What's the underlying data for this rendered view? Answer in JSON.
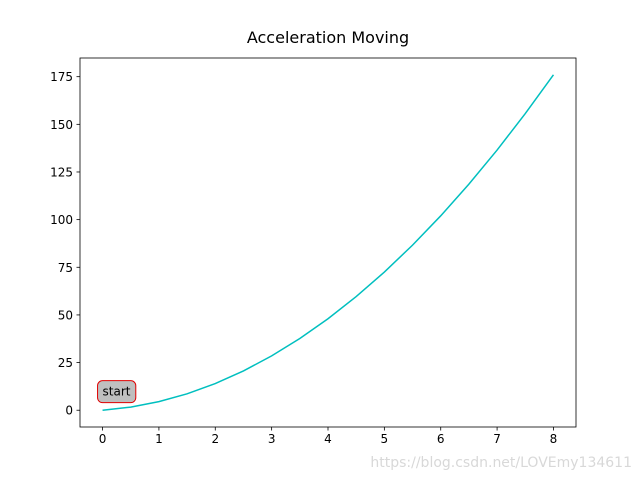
{
  "chart_data": {
    "type": "line",
    "title": "Acceleration Moving",
    "x": [
      0,
      0.5,
      1,
      1.5,
      2,
      2.5,
      3,
      3.5,
      4,
      4.5,
      5,
      5.5,
      6,
      6.5,
      7,
      7.5,
      8
    ],
    "series": [
      {
        "color": "#00bfbf",
        "values": [
          0,
          1.625,
          4.5,
          8.625,
          14,
          20.625,
          28.5,
          37.625,
          48,
          59.625,
          72.5,
          86.625,
          102,
          118.625,
          136.5,
          155.625,
          176
        ]
      }
    ],
    "xlim": [
      -0.4,
      8.4
    ],
    "xticks": [
      0,
      1,
      2,
      3,
      4,
      5,
      6,
      7,
      8
    ],
    "ylim": [
      -8.8,
      184.8
    ],
    "yticks": [
      0,
      25,
      50,
      75,
      100,
      125,
      150,
      175
    ],
    "annotations": [
      {
        "text": "start",
        "x": 0,
        "y": 10
      }
    ],
    "watermark": "https://blog.csdn.net/LOVEmy134611"
  }
}
